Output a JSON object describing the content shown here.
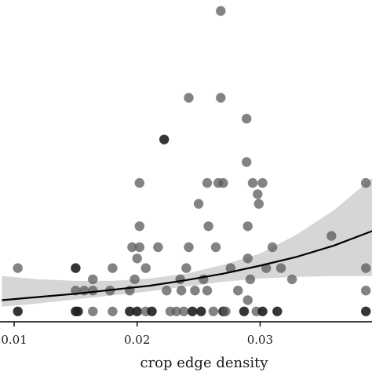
{
  "chart_data": {
    "type": "scatter",
    "title": "",
    "xlabel": "crop edge density",
    "ylabel": "",
    "xlim": [
      0.00885,
      0.0391
    ],
    "ylim": [
      -0.35,
      18.8
    ],
    "x_ticks": [
      0.01,
      0.02,
      0.03
    ],
    "x_tick_labels": [
      "0.01",
      "0.02",
      "0.03"
    ],
    "grid": false,
    "legend": "none",
    "points": [
      {
        "x": 0.0103,
        "y": 0,
        "shade": "dark"
      },
      {
        "x": 0.0103,
        "y": 2.7,
        "shade": "gray"
      },
      {
        "x": 0.015,
        "y": 0,
        "shade": "dark"
      },
      {
        "x": 0.015,
        "y": 1.3,
        "shade": "gray"
      },
      {
        "x": 0.015,
        "y": 2.7,
        "shade": "dark"
      },
      {
        "x": 0.0157,
        "y": 1.3,
        "shade": "gray"
      },
      {
        "x": 0.0152,
        "y": 0,
        "shade": "dark"
      },
      {
        "x": 0.0164,
        "y": 0,
        "shade": "gray"
      },
      {
        "x": 0.0164,
        "y": 1.3,
        "shade": "gray"
      },
      {
        "x": 0.0164,
        "y": 2.0,
        "shade": "gray"
      },
      {
        "x": 0.018,
        "y": 0,
        "shade": "gray"
      },
      {
        "x": 0.018,
        "y": 2.7,
        "shade": "gray"
      },
      {
        "x": 0.0178,
        "y": 1.3,
        "shade": "gray"
      },
      {
        "x": 0.0194,
        "y": 0,
        "shade": "dark"
      },
      {
        "x": 0.0194,
        "y": 1.3,
        "shade": "gray"
      },
      {
        "x": 0.0196,
        "y": 4.0,
        "shade": "gray"
      },
      {
        "x": 0.02,
        "y": 0,
        "shade": "dark"
      },
      {
        "x": 0.0202,
        "y": 4.0,
        "shade": "gray"
      },
      {
        "x": 0.0202,
        "y": 5.3,
        "shade": "gray"
      },
      {
        "x": 0.0202,
        "y": 8.0,
        "shade": "gray"
      },
      {
        "x": 0.02,
        "y": 3.3,
        "shade": "gray"
      },
      {
        "x": 0.0198,
        "y": 2.0,
        "shade": "gray"
      },
      {
        "x": 0.0207,
        "y": 0,
        "shade": "gray"
      },
      {
        "x": 0.0207,
        "y": 2.7,
        "shade": "gray"
      },
      {
        "x": 0.0212,
        "y": 0,
        "shade": "dark"
      },
      {
        "x": 0.0217,
        "y": 4.0,
        "shade": "gray"
      },
      {
        "x": 0.0222,
        "y": 10.7,
        "shade": "dark"
      },
      {
        "x": 0.0224,
        "y": 1.3,
        "shade": "gray"
      },
      {
        "x": 0.0227,
        "y": 0,
        "shade": "gray"
      },
      {
        "x": 0.0232,
        "y": 0,
        "shade": "gray"
      },
      {
        "x": 0.0235,
        "y": 2.0,
        "shade": "gray"
      },
      {
        "x": 0.0236,
        "y": 1.3,
        "shade": "gray"
      },
      {
        "x": 0.0238,
        "y": 0,
        "shade": "gray"
      },
      {
        "x": 0.024,
        "y": 2.7,
        "shade": "gray"
      },
      {
        "x": 0.0242,
        "y": 13.3,
        "shade": "gray"
      },
      {
        "x": 0.0242,
        "y": 4.0,
        "shade": "gray"
      },
      {
        "x": 0.0245,
        "y": 0,
        "shade": "dark"
      },
      {
        "x": 0.0247,
        "y": 1.3,
        "shade": "gray"
      },
      {
        "x": 0.025,
        "y": 6.7,
        "shade": "gray"
      },
      {
        "x": 0.0252,
        "y": 0,
        "shade": "dark"
      },
      {
        "x": 0.0254,
        "y": 2.0,
        "shade": "gray"
      },
      {
        "x": 0.0257,
        "y": 8.0,
        "shade": "gray"
      },
      {
        "x": 0.0257,
        "y": 1.3,
        "shade": "gray"
      },
      {
        "x": 0.0258,
        "y": 5.3,
        "shade": "gray"
      },
      {
        "x": 0.0262,
        "y": 0,
        "shade": "gray"
      },
      {
        "x": 0.0264,
        "y": 4.0,
        "shade": "gray"
      },
      {
        "x": 0.0266,
        "y": 8.0,
        "shade": "gray"
      },
      {
        "x": 0.0268,
        "y": 13.3,
        "shade": "gray"
      },
      {
        "x": 0.0268,
        "y": 18.7,
        "shade": "gray"
      },
      {
        "x": 0.027,
        "y": 0,
        "shade": "dark"
      },
      {
        "x": 0.027,
        "y": 8.0,
        "shade": "gray"
      },
      {
        "x": 0.0272,
        "y": 0,
        "shade": "gray"
      },
      {
        "x": 0.0276,
        "y": 2.7,
        "shade": "gray"
      },
      {
        "x": 0.0282,
        "y": 1.3,
        "shade": "gray"
      },
      {
        "x": 0.0287,
        "y": 0,
        "shade": "dark"
      },
      {
        "x": 0.0289,
        "y": 12.0,
        "shade": "gray"
      },
      {
        "x": 0.0289,
        "y": 9.3,
        "shade": "gray"
      },
      {
        "x": 0.029,
        "y": 5.3,
        "shade": "gray"
      },
      {
        "x": 0.029,
        "y": 3.3,
        "shade": "gray"
      },
      {
        "x": 0.029,
        "y": 0.7,
        "shade": "gray"
      },
      {
        "x": 0.0292,
        "y": 2.0,
        "shade": "gray"
      },
      {
        "x": 0.0294,
        "y": 8.0,
        "shade": "gray"
      },
      {
        "x": 0.0297,
        "y": 0,
        "shade": "gray"
      },
      {
        "x": 0.0298,
        "y": 7.3,
        "shade": "gray"
      },
      {
        "x": 0.0299,
        "y": 6.7,
        "shade": "gray"
      },
      {
        "x": 0.0302,
        "y": 0,
        "shade": "dark"
      },
      {
        "x": 0.0302,
        "y": 8.0,
        "shade": "gray"
      },
      {
        "x": 0.0305,
        "y": 2.7,
        "shade": "gray"
      },
      {
        "x": 0.031,
        "y": 4.0,
        "shade": "gray"
      },
      {
        "x": 0.0314,
        "y": 0,
        "shade": "dark"
      },
      {
        "x": 0.0317,
        "y": 2.7,
        "shade": "gray"
      },
      {
        "x": 0.0326,
        "y": 2.0,
        "shade": "gray"
      },
      {
        "x": 0.0358,
        "y": 4.7,
        "shade": "gray"
      },
      {
        "x": 0.0386,
        "y": 0,
        "shade": "dark"
      },
      {
        "x": 0.0386,
        "y": 8.0,
        "shade": "gray"
      },
      {
        "x": 0.0386,
        "y": 2.7,
        "shade": "gray"
      },
      {
        "x": 0.0386,
        "y": 1.3,
        "shade": "gray"
      }
    ],
    "fit_curve": [
      [
        0.009,
        0.7
      ],
      [
        0.012,
        0.9
      ],
      [
        0.015,
        1.1
      ],
      [
        0.018,
        1.35
      ],
      [
        0.021,
        1.6
      ],
      [
        0.024,
        1.95
      ],
      [
        0.027,
        2.35
      ],
      [
        0.03,
        2.85
      ],
      [
        0.033,
        3.4
      ],
      [
        0.036,
        4.1
      ],
      [
        0.0391,
        5.0
      ]
    ],
    "confidence_band": {
      "x": [
        0.009,
        0.012,
        0.015,
        0.018,
        0.021,
        0.024,
        0.027,
        0.03,
        0.033,
        0.036,
        0.0391
      ],
      "lower": [
        0.3,
        0.5,
        0.75,
        1.0,
        1.25,
        1.55,
        1.85,
        2.05,
        2.15,
        2.2,
        2.2
      ],
      "upper": [
        2.2,
        2.0,
        1.9,
        1.9,
        2.05,
        2.35,
        2.9,
        3.6,
        4.8,
        6.3,
        8.3
      ]
    },
    "colors": {
      "point_gray": "#5a5a5a",
      "point_dark": "#1f1f1f",
      "fit_line": "#000000",
      "band": "#d6d6d6",
      "axis": "#000000"
    }
  }
}
